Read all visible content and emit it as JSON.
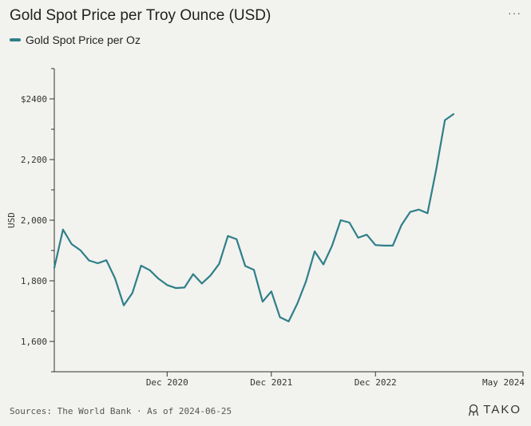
{
  "header": {
    "menu_label": "···"
  },
  "footer": {
    "sources": "Sources: The World Bank · As of 2024-06-25",
    "brand": "TAKO"
  },
  "chart_data": {
    "type": "line",
    "title": "Gold Spot Price per Troy Ounce (USD)",
    "xlabel": "",
    "ylabel": "USD",
    "ylim": [
      1500,
      2500
    ],
    "xlim": [
      "2019-11",
      "2024-05"
    ],
    "grid": false,
    "legend": "top-left",
    "color": "#2e7f8a",
    "y_ticks": [
      {
        "value": 2400,
        "label": "$2400"
      },
      {
        "value": 2200,
        "label": "2,200"
      },
      {
        "value": 2000,
        "label": "2,000"
      },
      {
        "value": 1800,
        "label": "1,800"
      },
      {
        "value": 1600,
        "label": "1,600"
      }
    ],
    "x_ticks": [
      {
        "value": "2020-12",
        "label": "Dec 2020"
      },
      {
        "value": "2021-12",
        "label": "Dec 2021"
      },
      {
        "value": "2022-12",
        "label": "Dec 2022"
      },
      {
        "value": "2024-05",
        "label": "May 2024"
      }
    ],
    "series": [
      {
        "name": "Gold Spot Price per Oz",
        "points": [
          [
            "2019-11",
            1843
          ],
          [
            "2019-12",
            1969
          ],
          [
            "2020-01",
            1921
          ],
          [
            "2020-02",
            1901
          ],
          [
            "2020-03",
            1867
          ],
          [
            "2020-04",
            1858
          ],
          [
            "2020-05",
            1868
          ],
          [
            "2020-06",
            1808
          ],
          [
            "2020-07",
            1719
          ],
          [
            "2020-08",
            1760
          ],
          [
            "2020-09",
            1850
          ],
          [
            "2020-10",
            1835
          ],
          [
            "2020-11",
            1807
          ],
          [
            "2020-12",
            1786
          ],
          [
            "2021-01",
            1776
          ],
          [
            "2021-02",
            1778
          ],
          [
            "2021-03",
            1822
          ],
          [
            "2021-04",
            1791
          ],
          [
            "2021-05",
            1818
          ],
          [
            "2021-06",
            1856
          ],
          [
            "2021-07",
            1948
          ],
          [
            "2021-08",
            1937
          ],
          [
            "2021-09",
            1849
          ],
          [
            "2021-10",
            1836
          ],
          [
            "2021-11",
            1731
          ],
          [
            "2021-12",
            1765
          ],
          [
            "2022-01",
            1680
          ],
          [
            "2022-02",
            1666
          ],
          [
            "2022-03",
            1725
          ],
          [
            "2022-04",
            1798
          ],
          [
            "2022-05",
            1897
          ],
          [
            "2022-06",
            1854
          ],
          [
            "2022-07",
            1916
          ],
          [
            "2022-08",
            2000
          ],
          [
            "2022-09",
            1992
          ],
          [
            "2022-10",
            1942
          ],
          [
            "2022-11",
            1952
          ],
          [
            "2022-12",
            1918
          ],
          [
            "2023-01",
            1916
          ],
          [
            "2023-02",
            1916
          ],
          [
            "2023-03",
            1984
          ],
          [
            "2023-04",
            2027
          ],
          [
            "2023-05",
            2035
          ],
          [
            "2023-06",
            2023
          ],
          [
            "2023-07",
            2167
          ],
          [
            "2023-08",
            2330
          ],
          [
            "2023-09",
            2350
          ]
        ]
      }
    ]
  }
}
